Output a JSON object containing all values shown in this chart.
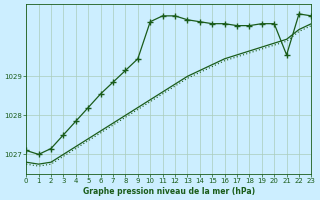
{
  "title": "Graphe pression niveau de la mer (hPa)",
  "bg_color": "#cceeff",
  "grid_color": "#aaccbb",
  "line_color": "#1a5c1a",
  "xlim": [
    0,
    23
  ],
  "ylim": [
    1026.5,
    1030.85
  ],
  "yticks": [
    1027,
    1028,
    1029
  ],
  "xticks": [
    0,
    1,
    2,
    3,
    4,
    5,
    6,
    7,
    8,
    9,
    10,
    11,
    12,
    13,
    14,
    15,
    16,
    17,
    18,
    19,
    20,
    21,
    22,
    23
  ],
  "s1_x": [
    0,
    1,
    2,
    3,
    4,
    5,
    6,
    7,
    8,
    9,
    10,
    11,
    12,
    13,
    14,
    15,
    16,
    17,
    18,
    19,
    20,
    21,
    22,
    23
  ],
  "s1_y": [
    1027.1,
    1027.0,
    1027.15,
    1027.5,
    1027.85,
    1028.2,
    1028.55,
    1028.85,
    1029.15,
    1029.45,
    1030.4,
    1030.55,
    1030.55,
    1030.45,
    1030.4,
    1030.35,
    1030.35,
    1030.3,
    1030.3,
    1030.35,
    1030.35,
    1029.55,
    1030.6,
    1030.55
  ],
  "s2_x": [
    0,
    1,
    2,
    3,
    4,
    5,
    6,
    7,
    8,
    9,
    10,
    11,
    12,
    13,
    14,
    15,
    16,
    17,
    18,
    19,
    20,
    21,
    22,
    23
  ],
  "s2_y": [
    1026.8,
    1026.75,
    1026.8,
    1027.0,
    1027.2,
    1027.4,
    1027.6,
    1027.8,
    1028.0,
    1028.2,
    1028.4,
    1028.6,
    1028.8,
    1029.0,
    1029.15,
    1029.3,
    1029.45,
    1029.55,
    1029.65,
    1029.75,
    1029.85,
    1029.95,
    1030.2,
    1030.35
  ],
  "s3_x": [
    0,
    1,
    2,
    3,
    4,
    5,
    6,
    7,
    8,
    9,
    10,
    11,
    12,
    13,
    14,
    15,
    16,
    17,
    18,
    19,
    20,
    21,
    22,
    23
  ],
  "s3_y": [
    1026.75,
    1026.7,
    1026.75,
    1026.95,
    1027.15,
    1027.35,
    1027.55,
    1027.75,
    1027.95,
    1028.15,
    1028.35,
    1028.55,
    1028.75,
    1028.95,
    1029.1,
    1029.25,
    1029.4,
    1029.5,
    1029.6,
    1029.7,
    1029.8,
    1029.9,
    1030.15,
    1030.3
  ]
}
